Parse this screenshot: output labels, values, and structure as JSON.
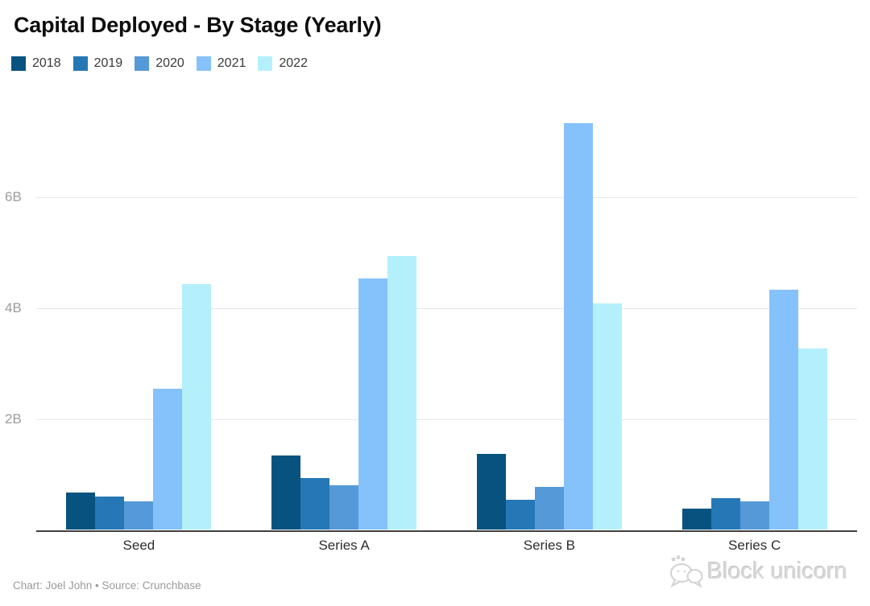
{
  "chart_data": {
    "type": "bar",
    "title": "Capital Deployed - By Stage (Yearly)",
    "categories": [
      "Seed",
      "Series A",
      "Series B",
      "Series C"
    ],
    "series": [
      {
        "name": "2018",
        "color": "#07527f",
        "values": [
          0.68,
          1.34,
          1.37,
          0.39
        ]
      },
      {
        "name": "2019",
        "color": "#2578b5",
        "values": [
          0.61,
          0.93,
          0.55,
          0.58
        ]
      },
      {
        "name": "2020",
        "color": "#5599d8",
        "values": [
          0.51,
          0.8,
          0.77,
          0.51
        ]
      },
      {
        "name": "2021",
        "color": "#85c2fb",
        "values": [
          2.55,
          4.54,
          7.34,
          4.33
        ]
      },
      {
        "name": "2022",
        "color": "#b4f0fc",
        "values": [
          4.43,
          4.95,
          4.09,
          3.27
        ]
      }
    ],
    "yticks": [
      {
        "label": "2B",
        "value": 2
      },
      {
        "label": "4B",
        "value": 4
      },
      {
        "label": "6B",
        "value": 6
      }
    ],
    "ylim": [
      0,
      7.67
    ],
    "xlabel": "",
    "ylabel": "",
    "grid": true,
    "legend_position": "top"
  },
  "footer": {
    "credit": "Chart: Joel John • Source: Crunchbase"
  },
  "watermark": {
    "text": "Block unicorn"
  }
}
